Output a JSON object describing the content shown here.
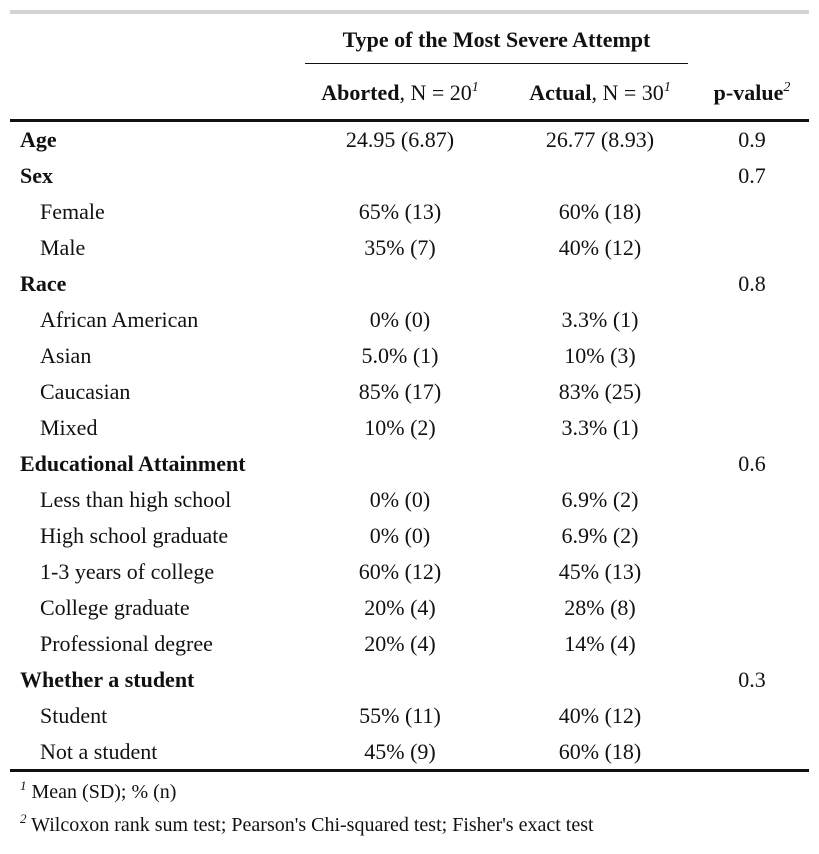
{
  "table": {
    "spanner": "Type of the Most Severe Attempt",
    "columns": [
      {
        "bold": "Aborted",
        "rest": ", N = 20",
        "sup": "1"
      },
      {
        "bold": "Actual",
        "rest": ", N = 30",
        "sup": "1"
      },
      {
        "bold": "p-value",
        "rest": "",
        "sup": "2"
      }
    ],
    "rows": [
      {
        "label": "Age",
        "level": 0,
        "aborted": "24.95 (6.87)",
        "actual": "26.77 (8.93)",
        "p": "0.9"
      },
      {
        "label": "Sex",
        "level": 0,
        "aborted": "",
        "actual": "",
        "p": "0.7"
      },
      {
        "label": "Female",
        "level": 1,
        "aborted": "65% (13)",
        "actual": "60% (18)",
        "p": ""
      },
      {
        "label": "Male",
        "level": 1,
        "aborted": "35% (7)",
        "actual": "40% (12)",
        "p": ""
      },
      {
        "label": "Race",
        "level": 0,
        "aborted": "",
        "actual": "",
        "p": "0.8"
      },
      {
        "label": "African American",
        "level": 1,
        "aborted": "0% (0)",
        "actual": "3.3% (1)",
        "p": ""
      },
      {
        "label": "Asian",
        "level": 1,
        "aborted": "5.0% (1)",
        "actual": "10% (3)",
        "p": ""
      },
      {
        "label": "Caucasian",
        "level": 1,
        "aborted": "85% (17)",
        "actual": "83% (25)",
        "p": ""
      },
      {
        "label": "Mixed",
        "level": 1,
        "aborted": "10% (2)",
        "actual": "3.3% (1)",
        "p": ""
      },
      {
        "label": "Educational Attainment",
        "level": 0,
        "aborted": "",
        "actual": "",
        "p": "0.6"
      },
      {
        "label": "Less than high school",
        "level": 1,
        "aborted": "0% (0)",
        "actual": "6.9% (2)",
        "p": ""
      },
      {
        "label": "High school graduate",
        "level": 1,
        "aborted": "0% (0)",
        "actual": "6.9% (2)",
        "p": ""
      },
      {
        "label": "1-3 years of college",
        "level": 1,
        "aborted": "60% (12)",
        "actual": "45% (13)",
        "p": ""
      },
      {
        "label": "College graduate",
        "level": 1,
        "aborted": "20% (4)",
        "actual": "28% (8)",
        "p": ""
      },
      {
        "label": "Professional degree",
        "level": 1,
        "aborted": "20% (4)",
        "actual": "14% (4)",
        "p": ""
      },
      {
        "label": "Whether a student",
        "level": 0,
        "aborted": "",
        "actual": "",
        "p": "0.3"
      },
      {
        "label": "Student",
        "level": 1,
        "aborted": "55% (11)",
        "actual": "40% (12)",
        "p": ""
      },
      {
        "label": "Not a student",
        "level": 1,
        "aborted": "45% (9)",
        "actual": "60% (18)",
        "p": ""
      }
    ],
    "footnotes": [
      {
        "mark": "1",
        "text": " Mean (SD); % (n)"
      },
      {
        "mark": "2",
        "text": " Wilcoxon rank sum test; Pearson's Chi-squared test; Fisher's exact test"
      }
    ]
  }
}
